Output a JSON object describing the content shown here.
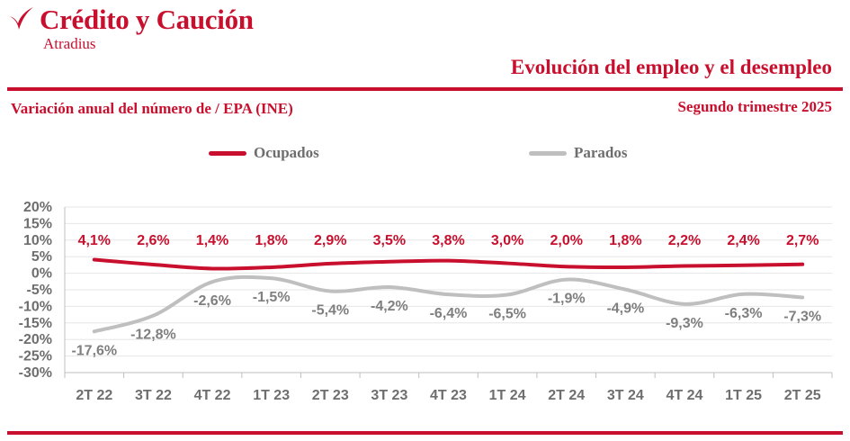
{
  "header": {
    "brand_name": "Crédito y Caución",
    "brand_sub": "Atradius",
    "title": "Evolución del empleo y el desempleo",
    "subtitle": "Variación anual del número de / EPA (INE)",
    "period": "Segundo trimestre 2025"
  },
  "colors": {
    "brand": "#c8102e",
    "ocupados": "#c8102e",
    "parados": "#bfbfbf",
    "parados_labels": "#7f7f7f",
    "axis_text": "#6e6e6e",
    "grid": "#e6e6e6"
  },
  "icons": {
    "brand_logo": "red-sweep-logo-icon"
  },
  "chart_data": {
    "type": "line",
    "categories": [
      "2T 22",
      "3T 22",
      "4T 22",
      "1T 23",
      "2T 23",
      "3T 23",
      "4T 23",
      "1T 24",
      "2T 24",
      "3T 24",
      "4T 24",
      "1T 25",
      "2T 25"
    ],
    "series": [
      {
        "name": "Ocupados",
        "values": [
          4.1,
          2.6,
          1.4,
          1.8,
          2.9,
          3.5,
          3.8,
          3.0,
          2.0,
          1.8,
          2.2,
          2.4,
          2.7
        ],
        "labels": [
          "4,1%",
          "2,6%",
          "1,4%",
          "1,8%",
          "2,9%",
          "3,5%",
          "3,8%",
          "3,0%",
          "2,0%",
          "1,8%",
          "2,2%",
          "2,4%",
          "2,7%"
        ]
      },
      {
        "name": "Parados",
        "values": [
          -17.6,
          -12.8,
          -2.6,
          -1.5,
          -5.4,
          -4.2,
          -6.4,
          -6.5,
          -1.9,
          -4.9,
          -9.3,
          -6.3,
          -7.3
        ],
        "labels": [
          "-17,6%",
          "-12,8%",
          "-2,6%",
          "-1,5%",
          "-5,4%",
          "-4,2%",
          "-6,4%",
          "-6,5%",
          "-1,9%",
          "-4,9%",
          "-9,3%",
          "-6,3%",
          "-7,3%"
        ]
      }
    ],
    "yticks": [
      20,
      15,
      10,
      5,
      0,
      -5,
      -10,
      -15,
      -20,
      -25,
      -30
    ],
    "ytick_labels": [
      "20%",
      "15%",
      "10%",
      "5%",
      "0%",
      "-5%",
      "-10%",
      "-15%",
      "-20%",
      "-25%",
      "-30%"
    ],
    "ylim": [
      -30,
      20
    ],
    "grid": true,
    "legend_position": "top-center",
    "xlabel": "",
    "ylabel": ""
  }
}
